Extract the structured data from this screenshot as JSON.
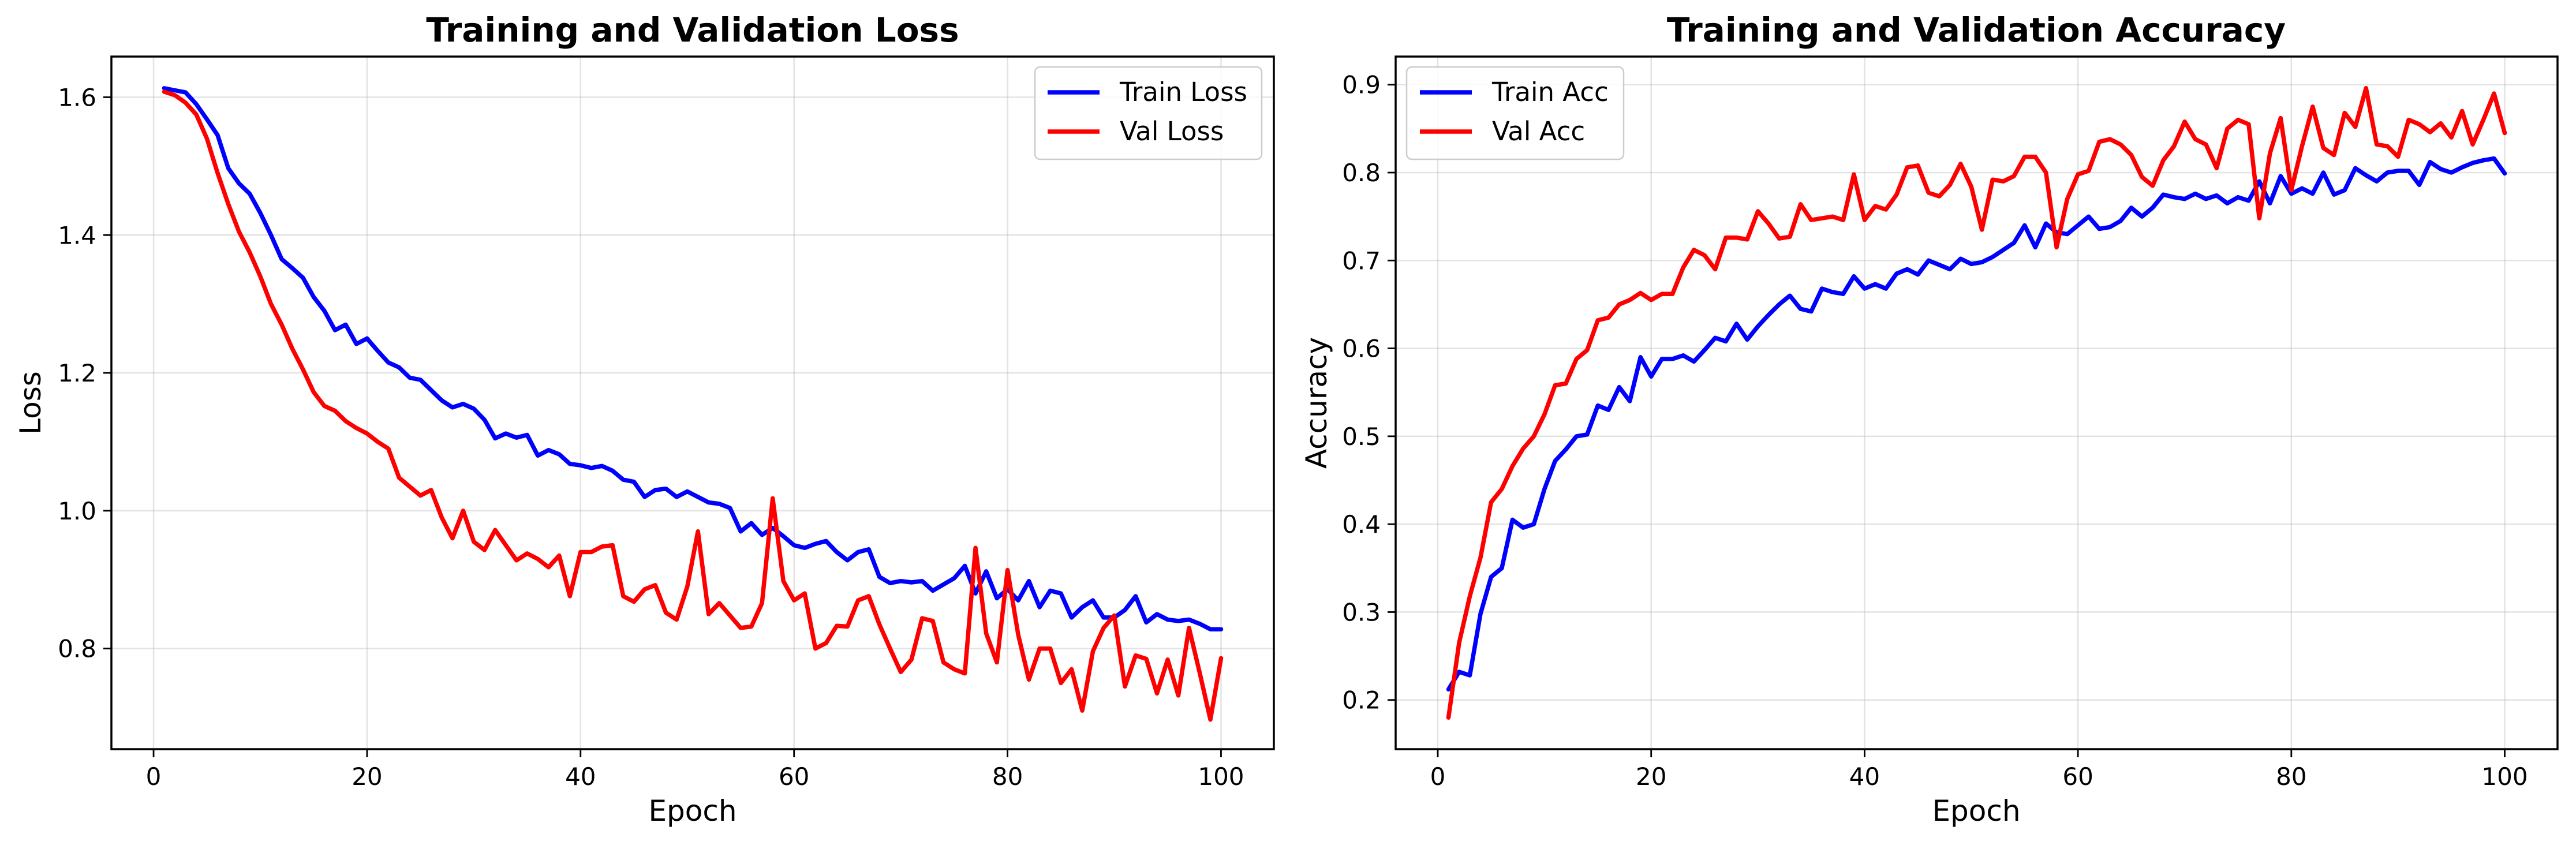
{
  "chart_data": [
    {
      "type": "line",
      "title": "Training and Validation Loss",
      "xlabel": "Epoch",
      "ylabel": "Loss",
      "xlim": [
        -3.95,
        104.95
      ],
      "ylim": [
        0.654,
        1.659
      ],
      "xticks": [
        0,
        20,
        40,
        60,
        80,
        100
      ],
      "yticks": [
        0.8,
        1.0,
        1.2,
        1.4,
        1.6
      ],
      "ytick_labels": [
        "0.8",
        "1.0",
        "1.2",
        "1.4",
        "1.6"
      ],
      "grid": true,
      "legend_position": "top-right",
      "series": [
        {
          "name": "Train Loss",
          "color": "#0000ff",
          "x": [
            1,
            2,
            3,
            4,
            5,
            6,
            7,
            8,
            9,
            10,
            11,
            12,
            13,
            14,
            15,
            16,
            17,
            18,
            19,
            20,
            21,
            22,
            23,
            24,
            25,
            26,
            27,
            28,
            29,
            30,
            31,
            32,
            33,
            34,
            35,
            36,
            37,
            38,
            39,
            40,
            41,
            42,
            43,
            44,
            45,
            46,
            47,
            48,
            49,
            50,
            51,
            52,
            53,
            54,
            55,
            56,
            57,
            58,
            59,
            60,
            61,
            62,
            63,
            64,
            65,
            66,
            67,
            68,
            69,
            70,
            71,
            72,
            73,
            74,
            75,
            76,
            77,
            78,
            79,
            80,
            81,
            82,
            83,
            84,
            85,
            86,
            87,
            88,
            89,
            90,
            91,
            92,
            93,
            94,
            95,
            96,
            97,
            98,
            99,
            100
          ],
          "values": [
            1.613,
            1.61,
            1.607,
            1.59,
            1.568,
            1.545,
            1.497,
            1.475,
            1.46,
            1.432,
            1.4,
            1.365,
            1.352,
            1.338,
            1.31,
            1.29,
            1.262,
            1.27,
            1.242,
            1.25,
            1.232,
            1.215,
            1.208,
            1.193,
            1.19,
            1.175,
            1.16,
            1.15,
            1.155,
            1.148,
            1.132,
            1.105,
            1.112,
            1.106,
            1.11,
            1.08,
            1.088,
            1.082,
            1.068,
            1.066,
            1.062,
            1.065,
            1.058,
            1.045,
            1.042,
            1.02,
            1.03,
            1.032,
            1.02,
            1.028,
            1.02,
            1.012,
            1.01,
            1.004,
            0.97,
            0.982,
            0.965,
            0.975,
            0.963,
            0.95,
            0.946,
            0.952,
            0.956,
            0.94,
            0.928,
            0.94,
            0.944,
            0.904,
            0.895,
            0.898,
            0.896,
            0.898,
            0.884,
            0.893,
            0.902,
            0.92,
            0.88,
            0.912,
            0.873,
            0.886,
            0.87,
            0.898,
            0.86,
            0.884,
            0.88,
            0.845,
            0.86,
            0.87,
            0.845,
            0.845,
            0.856,
            0.876,
            0.838,
            0.85,
            0.842,
            0.84,
            0.842,
            0.836,
            0.828,
            0.828
          ]
        },
        {
          "name": "Val Loss",
          "color": "#ff0000",
          "x": [
            1,
            2,
            3,
            4,
            5,
            6,
            7,
            8,
            9,
            10,
            11,
            12,
            13,
            14,
            15,
            16,
            17,
            18,
            19,
            20,
            21,
            22,
            23,
            24,
            25,
            26,
            27,
            28,
            29,
            30,
            31,
            32,
            33,
            34,
            35,
            36,
            37,
            38,
            39,
            40,
            41,
            42,
            43,
            44,
            45,
            46,
            47,
            48,
            49,
            50,
            51,
            52,
            53,
            54,
            55,
            56,
            57,
            58,
            59,
            60,
            61,
            62,
            63,
            64,
            65,
            66,
            67,
            68,
            69,
            70,
            71,
            72,
            73,
            74,
            75,
            76,
            77,
            78,
            79,
            80,
            81,
            82,
            83,
            84,
            85,
            86,
            87,
            88,
            89,
            90,
            91,
            92,
            93,
            94,
            95,
            96,
            97,
            98,
            99,
            100
          ],
          "values": [
            1.608,
            1.603,
            1.592,
            1.575,
            1.54,
            1.49,
            1.445,
            1.405,
            1.375,
            1.34,
            1.3,
            1.27,
            1.235,
            1.205,
            1.172,
            1.152,
            1.145,
            1.13,
            1.12,
            1.112,
            1.1,
            1.09,
            1.048,
            1.035,
            1.022,
            1.03,
            0.99,
            0.96,
            1.0,
            0.955,
            0.943,
            0.972,
            0.95,
            0.928,
            0.938,
            0.93,
            0.918,
            0.935,
            0.876,
            0.94,
            0.94,
            0.948,
            0.95,
            0.876,
            0.868,
            0.886,
            0.892,
            0.852,
            0.842,
            0.89,
            0.97,
            0.85,
            0.866,
            0.848,
            0.83,
            0.832,
            0.866,
            1.018,
            0.898,
            0.87,
            0.88,
            0.8,
            0.808,
            0.833,
            0.832,
            0.87,
            0.876,
            0.835,
            0.8,
            0.766,
            0.784,
            0.844,
            0.84,
            0.78,
            0.77,
            0.764,
            0.946,
            0.822,
            0.78,
            0.914,
            0.82,
            0.755,
            0.8,
            0.8,
            0.75,
            0.77,
            0.71,
            0.796,
            0.83,
            0.848,
            0.745,
            0.79,
            0.785,
            0.735,
            0.784,
            0.732,
            0.83,
            0.765,
            0.697,
            0.786
          ]
        }
      ]
    },
    {
      "type": "line",
      "title": "Training and Validation Accuracy",
      "xlabel": "Epoch",
      "ylabel": "Accuracy",
      "xlim": [
        -3.95,
        104.95
      ],
      "ylim": [
        0.144,
        0.932
      ],
      "xticks": [
        0,
        20,
        40,
        60,
        80,
        100
      ],
      "yticks": [
        0.2,
        0.3,
        0.4,
        0.5,
        0.6,
        0.7,
        0.8,
        0.9
      ],
      "ytick_labels": [
        "0.2",
        "0.3",
        "0.4",
        "0.5",
        "0.6",
        "0.7",
        "0.8",
        "0.9"
      ],
      "grid": true,
      "legend_position": "top-left",
      "series": [
        {
          "name": "Train Acc",
          "color": "#0000ff",
          "x": [
            1,
            2,
            3,
            4,
            5,
            6,
            7,
            8,
            9,
            10,
            11,
            12,
            13,
            14,
            15,
            16,
            17,
            18,
            19,
            20,
            21,
            22,
            23,
            24,
            25,
            26,
            27,
            28,
            29,
            30,
            31,
            32,
            33,
            34,
            35,
            36,
            37,
            38,
            39,
            40,
            41,
            42,
            43,
            44,
            45,
            46,
            47,
            48,
            49,
            50,
            51,
            52,
            53,
            54,
            55,
            56,
            57,
            58,
            59,
            60,
            61,
            62,
            63,
            64,
            65,
            66,
            67,
            68,
            69,
            70,
            71,
            72,
            73,
            74,
            75,
            76,
            77,
            78,
            79,
            80,
            81,
            82,
            83,
            84,
            85,
            86,
            87,
            88,
            89,
            90,
            91,
            92,
            93,
            94,
            95,
            96,
            97,
            98,
            99,
            100
          ],
          "values": [
            0.212,
            0.232,
            0.228,
            0.298,
            0.34,
            0.35,
            0.405,
            0.396,
            0.4,
            0.44,
            0.472,
            0.485,
            0.5,
            0.502,
            0.535,
            0.53,
            0.556,
            0.54,
            0.59,
            0.568,
            0.588,
            0.588,
            0.592,
            0.585,
            0.598,
            0.612,
            0.608,
            0.628,
            0.61,
            0.625,
            0.638,
            0.65,
            0.66,
            0.645,
            0.642,
            0.668,
            0.664,
            0.662,
            0.682,
            0.668,
            0.673,
            0.668,
            0.685,
            0.69,
            0.684,
            0.7,
            0.695,
            0.69,
            0.702,
            0.696,
            0.698,
            0.704,
            0.712,
            0.72,
            0.74,
            0.715,
            0.742,
            0.732,
            0.73,
            0.74,
            0.75,
            0.736,
            0.738,
            0.745,
            0.76,
            0.75,
            0.76,
            0.775,
            0.772,
            0.77,
            0.776,
            0.77,
            0.774,
            0.765,
            0.772,
            0.768,
            0.79,
            0.765,
            0.796,
            0.776,
            0.782,
            0.776,
            0.8,
            0.775,
            0.78,
            0.805,
            0.797,
            0.79,
            0.8,
            0.802,
            0.802,
            0.786,
            0.812,
            0.804,
            0.8,
            0.806,
            0.811,
            0.814,
            0.816,
            0.799
          ]
        },
        {
          "name": "Val Acc",
          "color": "#ff0000",
          "x": [
            1,
            2,
            3,
            4,
            5,
            6,
            7,
            8,
            9,
            10,
            11,
            12,
            13,
            14,
            15,
            16,
            17,
            18,
            19,
            20,
            21,
            22,
            23,
            24,
            25,
            26,
            27,
            28,
            29,
            30,
            31,
            32,
            33,
            34,
            35,
            36,
            37,
            38,
            39,
            40,
            41,
            42,
            43,
            44,
            45,
            46,
            47,
            48,
            49,
            50,
            51,
            52,
            53,
            54,
            55,
            56,
            57,
            58,
            59,
            60,
            61,
            62,
            63,
            64,
            65,
            66,
            67,
            68,
            69,
            70,
            71,
            72,
            73,
            74,
            75,
            76,
            77,
            78,
            79,
            80,
            81,
            82,
            83,
            84,
            85,
            86,
            87,
            88,
            89,
            90,
            91,
            92,
            93,
            94,
            95,
            96,
            97,
            98,
            99,
            100
          ],
          "values": [
            0.18,
            0.265,
            0.318,
            0.362,
            0.425,
            0.44,
            0.466,
            0.486,
            0.5,
            0.525,
            0.558,
            0.56,
            0.588,
            0.598,
            0.632,
            0.635,
            0.65,
            0.655,
            0.663,
            0.655,
            0.662,
            0.662,
            0.692,
            0.712,
            0.706,
            0.69,
            0.726,
            0.726,
            0.724,
            0.756,
            0.742,
            0.725,
            0.727,
            0.764,
            0.746,
            0.748,
            0.75,
            0.746,
            0.798,
            0.746,
            0.762,
            0.758,
            0.775,
            0.806,
            0.808,
            0.777,
            0.773,
            0.786,
            0.81,
            0.784,
            0.735,
            0.792,
            0.79,
            0.796,
            0.818,
            0.818,
            0.8,
            0.715,
            0.77,
            0.798,
            0.802,
            0.835,
            0.838,
            0.832,
            0.82,
            0.795,
            0.785,
            0.814,
            0.83,
            0.858,
            0.838,
            0.832,
            0.805,
            0.85,
            0.86,
            0.855,
            0.748,
            0.822,
            0.862,
            0.78,
            0.83,
            0.875,
            0.828,
            0.82,
            0.868,
            0.852,
            0.896,
            0.832,
            0.83,
            0.818,
            0.86,
            0.855,
            0.846,
            0.856,
            0.84,
            0.87,
            0.832,
            0.86,
            0.89,
            0.845
          ]
        }
      ]
    }
  ]
}
